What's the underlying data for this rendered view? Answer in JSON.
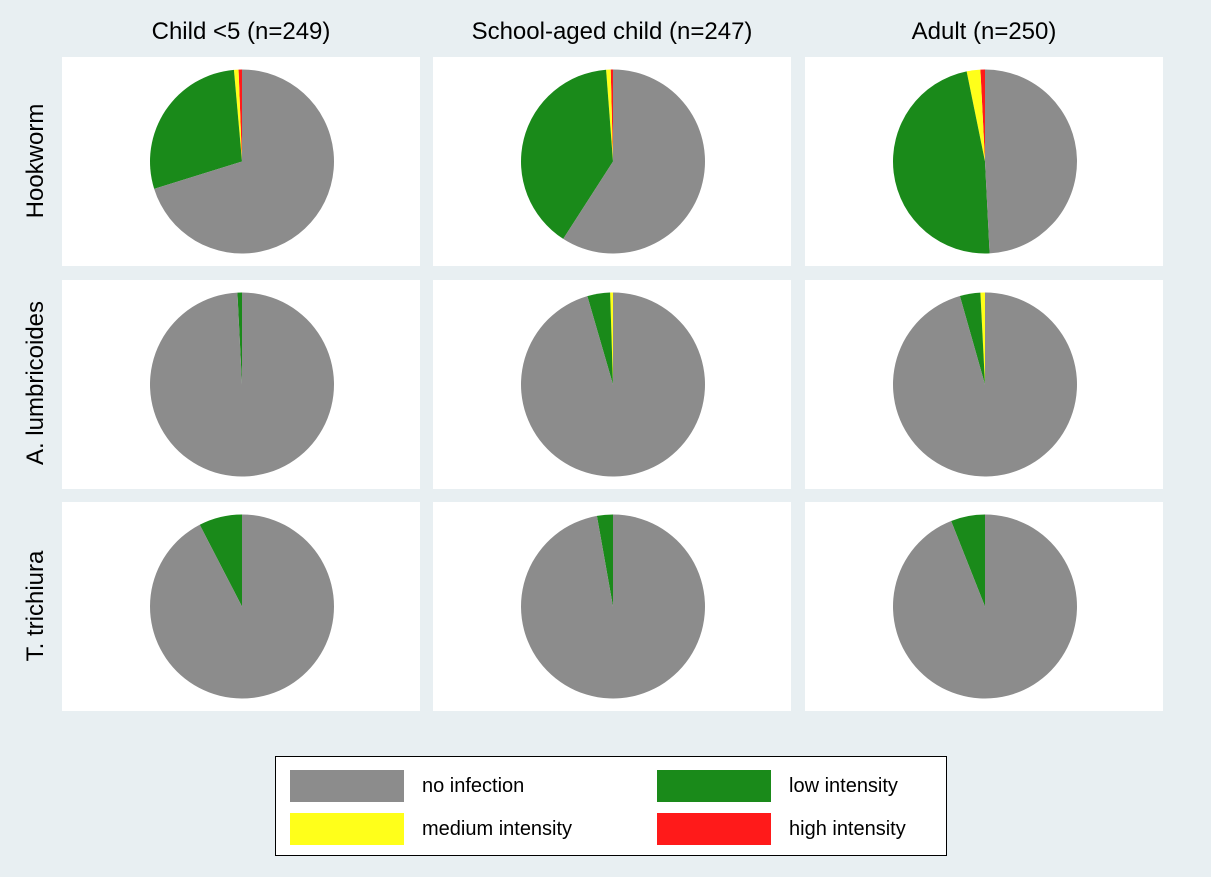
{
  "chart_data": {
    "type": "pie",
    "column_titles": [
      "Child <5 (n=249)",
      "School-aged child (n=247)",
      "Adult (n=250)"
    ],
    "row_titles": [
      "Hookworm",
      "A. lumbricoides",
      "T. trichiura"
    ],
    "categories": [
      "no infection",
      "low intensity",
      "medium intensity",
      "high intensity"
    ],
    "colors": {
      "no infection": "#8c8c8c",
      "low intensity": "#1a8a1a",
      "medium intensity": "#ffff1a",
      "high intensity": "#ff1a1a"
    },
    "legend_position": "bottom",
    "panels": [
      {
        "row": "Hookworm",
        "column": "Child <5 (n=249)",
        "values": {
          "no infection": 70.2,
          "low intensity": 28.4,
          "medium intensity": 0.8,
          "high intensity": 0.6
        }
      },
      {
        "row": "Hookworm",
        "column": "School-aged child (n=247)",
        "values": {
          "no infection": 59.1,
          "low intensity": 39.7,
          "medium intensity": 0.8,
          "high intensity": 0.4
        }
      },
      {
        "row": "Hookworm",
        "column": "Adult (n=250)",
        "values": {
          "no infection": 49.2,
          "low intensity": 47.6,
          "medium intensity": 2.4,
          "high intensity": 0.8
        }
      },
      {
        "row": "A. lumbricoides",
        "column": "Child <5 (n=249)",
        "values": {
          "no infection": 99.2,
          "low intensity": 0.8,
          "medium intensity": 0.0,
          "high intensity": 0.0
        }
      },
      {
        "row": "A. lumbricoides",
        "column": "School-aged child (n=247)",
        "values": {
          "no infection": 95.5,
          "low intensity": 4.0,
          "medium intensity": 0.5,
          "high intensity": 0.0
        }
      },
      {
        "row": "A. lumbricoides",
        "column": "Adult (n=250)",
        "values": {
          "no infection": 95.6,
          "low intensity": 3.6,
          "medium intensity": 0.8,
          "high intensity": 0.0
        }
      },
      {
        "row": "T. trichiura",
        "column": "Child <5 (n=249)",
        "values": {
          "no infection": 92.4,
          "low intensity": 7.6,
          "medium intensity": 0.0,
          "high intensity": 0.0
        }
      },
      {
        "row": "T. trichiura",
        "column": "School-aged child (n=247)",
        "values": {
          "no infection": 97.2,
          "low intensity": 2.8,
          "medium intensity": 0.0,
          "high intensity": 0.0
        }
      },
      {
        "row": "T. trichiura",
        "column": "Adult (n=250)",
        "values": {
          "no infection": 94.0,
          "low intensity": 6.0,
          "medium intensity": 0.0,
          "high intensity": 0.0
        }
      }
    ]
  }
}
